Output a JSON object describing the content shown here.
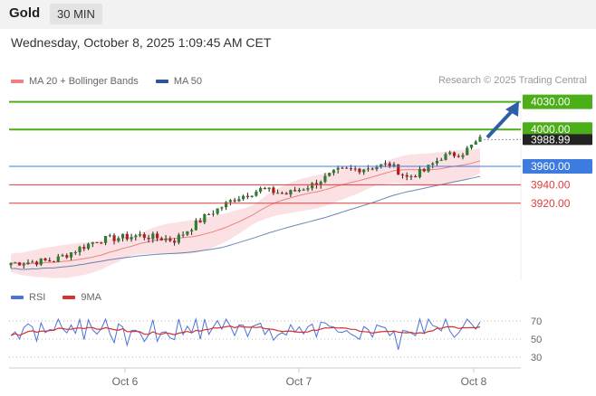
{
  "header": {
    "instrument": "Gold",
    "timeframe": "30 MIN",
    "datetime": "Wednesday, October 8, 2025 1:09:45 AM CET"
  },
  "legend": {
    "ma20_bb_label": "MA 20 + Bollinger Bands",
    "ma50_label": "MA 50",
    "ma20_color": "#f08080",
    "ma50_color": "#2f5597"
  },
  "credit": "Research © 2025 Trading Central",
  "levels": [
    {
      "name": "level-4030",
      "value": 4030.0,
      "label": "4030.00",
      "type": "target",
      "color": "#4caf1a"
    },
    {
      "name": "level-4000",
      "value": 4000.0,
      "label": "4000.00",
      "type": "target",
      "color": "#4caf1a"
    },
    {
      "name": "level-3988",
      "value": 3988.99,
      "label": "3988.99",
      "type": "last-price",
      "color": "#222222"
    },
    {
      "name": "level-3960",
      "value": 3960.0,
      "label": "3960.00",
      "type": "pivot",
      "color": "#3d7be0"
    },
    {
      "name": "level-3940",
      "value": 3940.0,
      "label": "3940.00",
      "type": "support",
      "color": "#e03c3c"
    },
    {
      "name": "level-3920",
      "value": 3920.0,
      "label": "3920.00",
      "type": "support",
      "color": "#e03c3c"
    }
  ],
  "rsi_legend": {
    "rsi_label": "RSI",
    "ma9_label": "9MA",
    "rsi_color": "#4a72d8",
    "ma9_color": "#d93030"
  },
  "rsi_levels": [
    "70",
    "50",
    "30"
  ],
  "x_axis": [
    "Oct 6",
    "Oct 7",
    "Oct 8"
  ]
}
